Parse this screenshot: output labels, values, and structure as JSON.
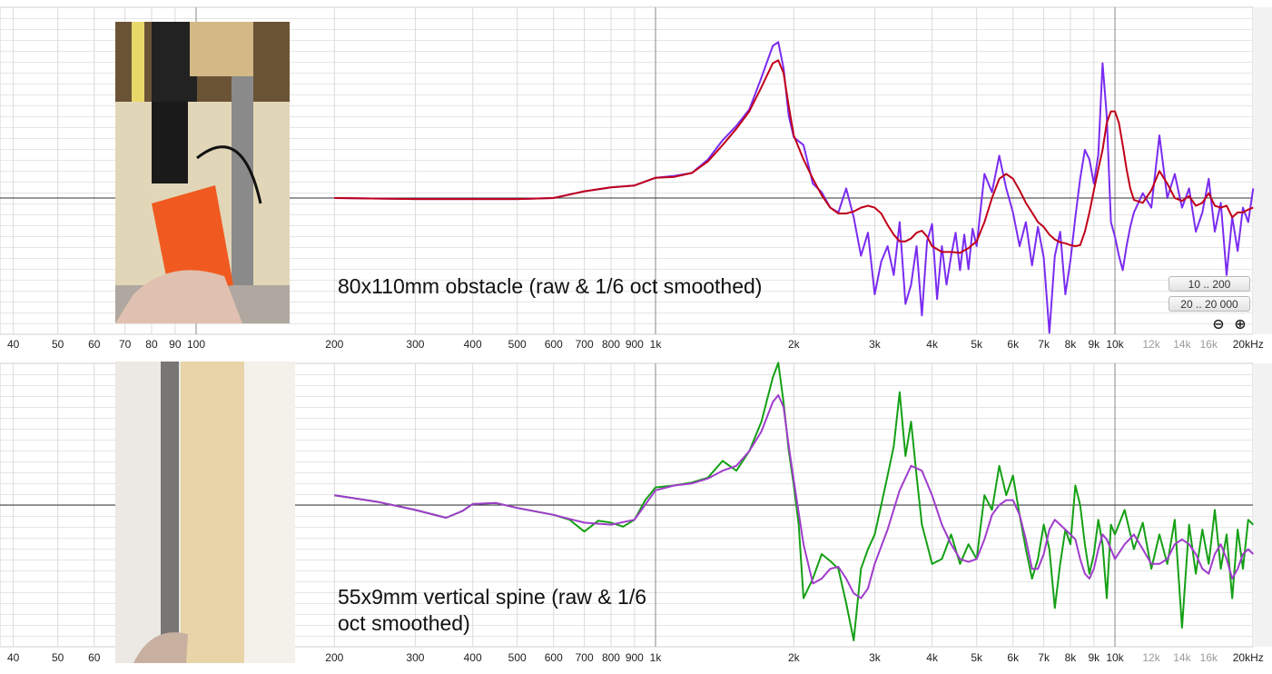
{
  "chart_data": [
    {
      "type": "line",
      "title": "80x110mm obstacle (raw & 1/6 oct smoothed)",
      "x_scale": "log",
      "x_unit": "Hz",
      "xlim": [
        20,
        20000
      ],
      "x_ticks": [
        "40",
        "50",
        "60",
        "70",
        "80",
        "90",
        "100",
        "200",
        "300",
        "400",
        "500",
        "600",
        "700",
        "800",
        "900",
        "1k",
        "2k",
        "3k",
        "4k",
        "5k",
        "6k",
        "7k",
        "8k",
        "9k",
        "10k",
        "12k",
        "14k",
        "16k",
        "20kHz"
      ],
      "ylim": [
        -14,
        16
      ],
      "grid": true,
      "series": [
        {
          "name": "",
          "color": "#7a2cf0",
          "x": [
            200,
            300,
            400,
            500,
            600,
            700,
            800,
            900,
            1000,
            1100,
            1200,
            1300,
            1400,
            1500,
            1600,
            1700,
            1800,
            1850,
            1900,
            1950,
            2000,
            2100,
            2200,
            2300,
            2400,
            2500,
            2600,
            2700,
            2800,
            2900,
            3000,
            3100,
            3200,
            3300,
            3400,
            3500,
            3600,
            3700,
            3800,
            3900,
            4000,
            4100,
            4200,
            4300,
            4400,
            4500,
            4600,
            4700,
            4800,
            4900,
            5000,
            5200,
            5400,
            5600,
            5800,
            6000,
            6200,
            6400,
            6600,
            6800,
            7000,
            7200,
            7400,
            7600,
            7800,
            8000,
            8200,
            8400,
            8600,
            8800,
            9000,
            9200,
            9400,
            9600,
            9800,
            10000,
            10200,
            10400,
            10600,
            10800,
            11000,
            11500,
            12000,
            12500,
            13000,
            13500,
            14000,
            14500,
            15000,
            15500,
            16000,
            16500,
            17000,
            17500,
            18000,
            18500,
            19000,
            19500,
            20000
          ],
          "y": [
            0,
            -0.1,
            -0.1,
            -0.1,
            0,
            0.7,
            1.1,
            1.3,
            2.1,
            2.3,
            2.6,
            4.0,
            6.0,
            7.5,
            9.2,
            12.5,
            15.8,
            16.2,
            13.5,
            8.5,
            6.3,
            5.5,
            1.5,
            0.6,
            -1.0,
            -1.5,
            1.0,
            -2.0,
            -6.0,
            -3.6,
            -10.0,
            -6.6,
            -5.0,
            -8.0,
            -2.5,
            -11.0,
            -9.0,
            -5.0,
            -12.2,
            -4.5,
            -2.7,
            -10.5,
            -5.0,
            -9.0,
            -6.0,
            -3.6,
            -7.5,
            -3.8,
            -7.4,
            -3.2,
            -5.0,
            2.5,
            0.6,
            4.4,
            1.0,
            -1.5,
            -5.0,
            -2.5,
            -7.0,
            -3.0,
            -6.2,
            -14.0,
            -6.0,
            -3.5,
            -10.0,
            -6.5,
            -2.0,
            2.0,
            5.0,
            4.0,
            1.5,
            4.5,
            14.0,
            8.5,
            -2.5,
            -4.0,
            -6.0,
            -7.5,
            -5.0,
            -3.0,
            -1.5,
            0.5,
            -1.0,
            6.5,
            0.0,
            2.5,
            -1.0,
            1.0,
            -3.5,
            -1.5,
            2.0,
            -3.5,
            -0.5,
            -8.0,
            -2.0,
            -5.5,
            -1.0,
            -2.5,
            1.0
          ]
        },
        {
          "name": "",
          "color": "#c00018",
          "x": [
            200,
            300,
            400,
            500,
            600,
            700,
            800,
            900,
            1000,
            1100,
            1200,
            1300,
            1400,
            1500,
            1600,
            1700,
            1800,
            1850,
            1900,
            1950,
            2000,
            2100,
            2200,
            2300,
            2400,
            2500,
            2600,
            2700,
            2800,
            2900,
            3000,
            3100,
            3200,
            3300,
            3400,
            3500,
            3600,
            3700,
            3800,
            3900,
            4000,
            4200,
            4400,
            4600,
            4800,
            5000,
            5200,
            5400,
            5600,
            5800,
            6000,
            6200,
            6400,
            6600,
            6800,
            7000,
            7200,
            7400,
            7600,
            7800,
            8000,
            8200,
            8400,
            8600,
            8800,
            9000,
            9200,
            9400,
            9600,
            9800,
            10000,
            10200,
            10400,
            10600,
            10800,
            11000,
            11500,
            12000,
            12500,
            13000,
            13500,
            14000,
            14500,
            15000,
            15500,
            16000,
            16500,
            17000,
            17500,
            18000,
            18500,
            19000,
            19500,
            20000
          ],
          "y": [
            0,
            -0.1,
            -0.1,
            -0.1,
            0,
            0.7,
            1.1,
            1.3,
            2.1,
            2.2,
            2.6,
            3.8,
            5.5,
            7.2,
            9.0,
            11.5,
            14.0,
            14.3,
            13.0,
            9.5,
            6.5,
            4.0,
            2.0,
            0.3,
            -1.0,
            -1.6,
            -1.6,
            -1.4,
            -1.0,
            -0.8,
            -1.0,
            -1.6,
            -2.8,
            -3.8,
            -4.5,
            -4.5,
            -4.2,
            -3.6,
            -3.4,
            -4.0,
            -5.0,
            -5.6,
            -5.6,
            -5.7,
            -5.2,
            -4.5,
            -2.5,
            0.0,
            2.0,
            2.5,
            2.0,
            0.8,
            -0.5,
            -1.5,
            -2.5,
            -3.0,
            -3.8,
            -4.3,
            -4.6,
            -4.7,
            -4.9,
            -5.0,
            -4.9,
            -3.5,
            -1.5,
            0.8,
            3.0,
            5.0,
            7.8,
            9.0,
            9.0,
            7.8,
            5.5,
            3.0,
            1.0,
            -0.2,
            -0.5,
            0.8,
            2.8,
            1.5,
            0.0,
            -0.3,
            0.2,
            -0.8,
            -0.5,
            0.5,
            -0.8,
            -1.0,
            -0.8,
            -2.0,
            -1.5,
            -1.5,
            -1.2,
            -1.0
          ]
        }
      ]
    },
    {
      "type": "line",
      "title": "55x9mm vertical spine (raw & 1/6 oct smoothed)",
      "x_scale": "log",
      "x_unit": "Hz",
      "xlim": [
        20,
        20000
      ],
      "x_ticks": [
        "40",
        "50",
        "60",
        "200",
        "300",
        "400",
        "500",
        "600",
        "700",
        "800",
        "900",
        "1k",
        "2k",
        "3k",
        "4k",
        "5k",
        "6k",
        "7k",
        "8k",
        "9k",
        "10k",
        "12k",
        "14k",
        "16k",
        "20kHz"
      ],
      "ylim": [
        -14,
        16
      ],
      "grid": true,
      "series": [
        {
          "name": "",
          "color": "#15a015",
          "x": [
            200,
            250,
            300,
            350,
            380,
            400,
            450,
            500,
            600,
            650,
            700,
            750,
            800,
            850,
            900,
            950,
            1000,
            1100,
            1200,
            1300,
            1400,
            1500,
            1600,
            1700,
            1800,
            1850,
            1900,
            1950,
            2000,
            2050,
            2100,
            2200,
            2300,
            2400,
            2500,
            2600,
            2700,
            2800,
            2900,
            3000,
            3100,
            3200,
            3300,
            3400,
            3500,
            3600,
            3700,
            3800,
            3900,
            4000,
            4200,
            4400,
            4600,
            4800,
            5000,
            5200,
            5400,
            5600,
            5800,
            6000,
            6200,
            6400,
            6600,
            6800,
            7000,
            7200,
            7400,
            7600,
            7800,
            8000,
            8200,
            8400,
            8600,
            8800,
            9000,
            9200,
            9400,
            9600,
            9800,
            10000,
            10500,
            11000,
            11500,
            12000,
            12500,
            13000,
            13500,
            14000,
            14500,
            15000,
            15500,
            16000,
            16500,
            17000,
            17500,
            18000,
            18500,
            19000,
            19500,
            20000
          ],
          "y": [
            1.0,
            0.3,
            -0.5,
            -1.3,
            -0.6,
            0.1,
            0.2,
            -0.3,
            -1.0,
            -1.5,
            -2.7,
            -1.6,
            -1.8,
            -2.2,
            -1.5,
            0.5,
            1.8,
            2.0,
            2.3,
            2.8,
            4.5,
            3.5,
            5.5,
            8.5,
            13.0,
            14.5,
            10.5,
            5.5,
            2.0,
            -2.0,
            -9.5,
            -7.5,
            -5.0,
            -5.7,
            -6.5,
            -10.0,
            -13.8,
            -6.5,
            -4.5,
            -3.0,
            0.0,
            3.0,
            6.0,
            11.5,
            5.0,
            8.5,
            3.0,
            -2.0,
            -4.0,
            -6.0,
            -5.5,
            -3.0,
            -6.0,
            -4.0,
            -5.5,
            1.0,
            -0.5,
            4.0,
            1.0,
            3.0,
            -1.0,
            -4.5,
            -7.5,
            -5.5,
            -2.0,
            -4.5,
            -10.5,
            -6.0,
            -2.5,
            -4.0,
            2.0,
            0.0,
            -4.0,
            -7.0,
            -5.0,
            -1.5,
            -4.0,
            -9.5,
            -2.0,
            -3.0,
            -0.5,
            -4.5,
            -1.8,
            -6.5,
            -3.0,
            -6.0,
            -1.5,
            -12.5,
            -2.0,
            -7.0,
            -2.5,
            -6.0,
            -0.5,
            -6.5,
            -3.0,
            -9.5,
            -2.5,
            -6.5,
            -1.5,
            -2.0
          ]
        },
        {
          "name": "",
          "color": "#a03ccc",
          "x": [
            200,
            250,
            300,
            350,
            380,
            400,
            450,
            500,
            600,
            700,
            800,
            900,
            1000,
            1100,
            1200,
            1300,
            1400,
            1500,
            1600,
            1700,
            1800,
            1850,
            1900,
            1950,
            2000,
            2100,
            2200,
            2300,
            2400,
            2500,
            2600,
            2700,
            2800,
            2900,
            3000,
            3200,
            3400,
            3600,
            3800,
            4000,
            4200,
            4400,
            4600,
            4800,
            5000,
            5200,
            5400,
            5600,
            5800,
            6000,
            6200,
            6400,
            6600,
            6800,
            7000,
            7200,
            7400,
            7600,
            7800,
            8000,
            8200,
            8400,
            8600,
            8800,
            9000,
            9200,
            9400,
            9600,
            9800,
            10000,
            10500,
            11000,
            11500,
            12000,
            12500,
            13000,
            13500,
            14000,
            14500,
            15000,
            15500,
            16000,
            16500,
            17000,
            17500,
            18000,
            18500,
            19000,
            19500,
            20000
          ],
          "y": [
            1.0,
            0.3,
            -0.5,
            -1.3,
            -0.6,
            0.1,
            0.2,
            -0.3,
            -1.0,
            -1.8,
            -2.0,
            -1.5,
            1.5,
            2.0,
            2.2,
            2.7,
            3.5,
            4.0,
            5.5,
            7.5,
            10.5,
            11.2,
            10.0,
            6.0,
            2.5,
            -4.0,
            -8.0,
            -7.5,
            -6.5,
            -6.3,
            -7.5,
            -9.0,
            -9.5,
            -8.5,
            -6.0,
            -2.5,
            1.5,
            4.0,
            3.5,
            1.0,
            -2.0,
            -4.0,
            -5.5,
            -5.8,
            -5.5,
            -3.5,
            -1.0,
            0.0,
            0.5,
            0.5,
            -1.0,
            -3.5,
            -6.5,
            -6.5,
            -5.0,
            -2.5,
            -1.5,
            -2.0,
            -2.5,
            -3.0,
            -3.5,
            -5.5,
            -7.0,
            -7.5,
            -6.5,
            -4.5,
            -3.0,
            -3.5,
            -4.5,
            -5.5,
            -4.0,
            -3.0,
            -4.5,
            -6.0,
            -6.0,
            -5.5,
            -4.0,
            -3.5,
            -4.0,
            -5.0,
            -6.5,
            -7.0,
            -5.0,
            -4.0,
            -5.5,
            -7.5,
            -6.5,
            -5.0,
            -4.5,
            -5.0
          ]
        }
      ]
    }
  ],
  "buttons": {
    "range_1": "10 .. 200",
    "range_2": "20 .. 20 000",
    "zoom_out": "⊖",
    "zoom_in": "⊕"
  },
  "captions": {
    "top": "80x110mm obstacle (raw & 1/6 oct smoothed)",
    "bottom_line1": "55x9mm vertical spine (raw & 1/6",
    "bottom_line2": "oct smoothed)"
  }
}
